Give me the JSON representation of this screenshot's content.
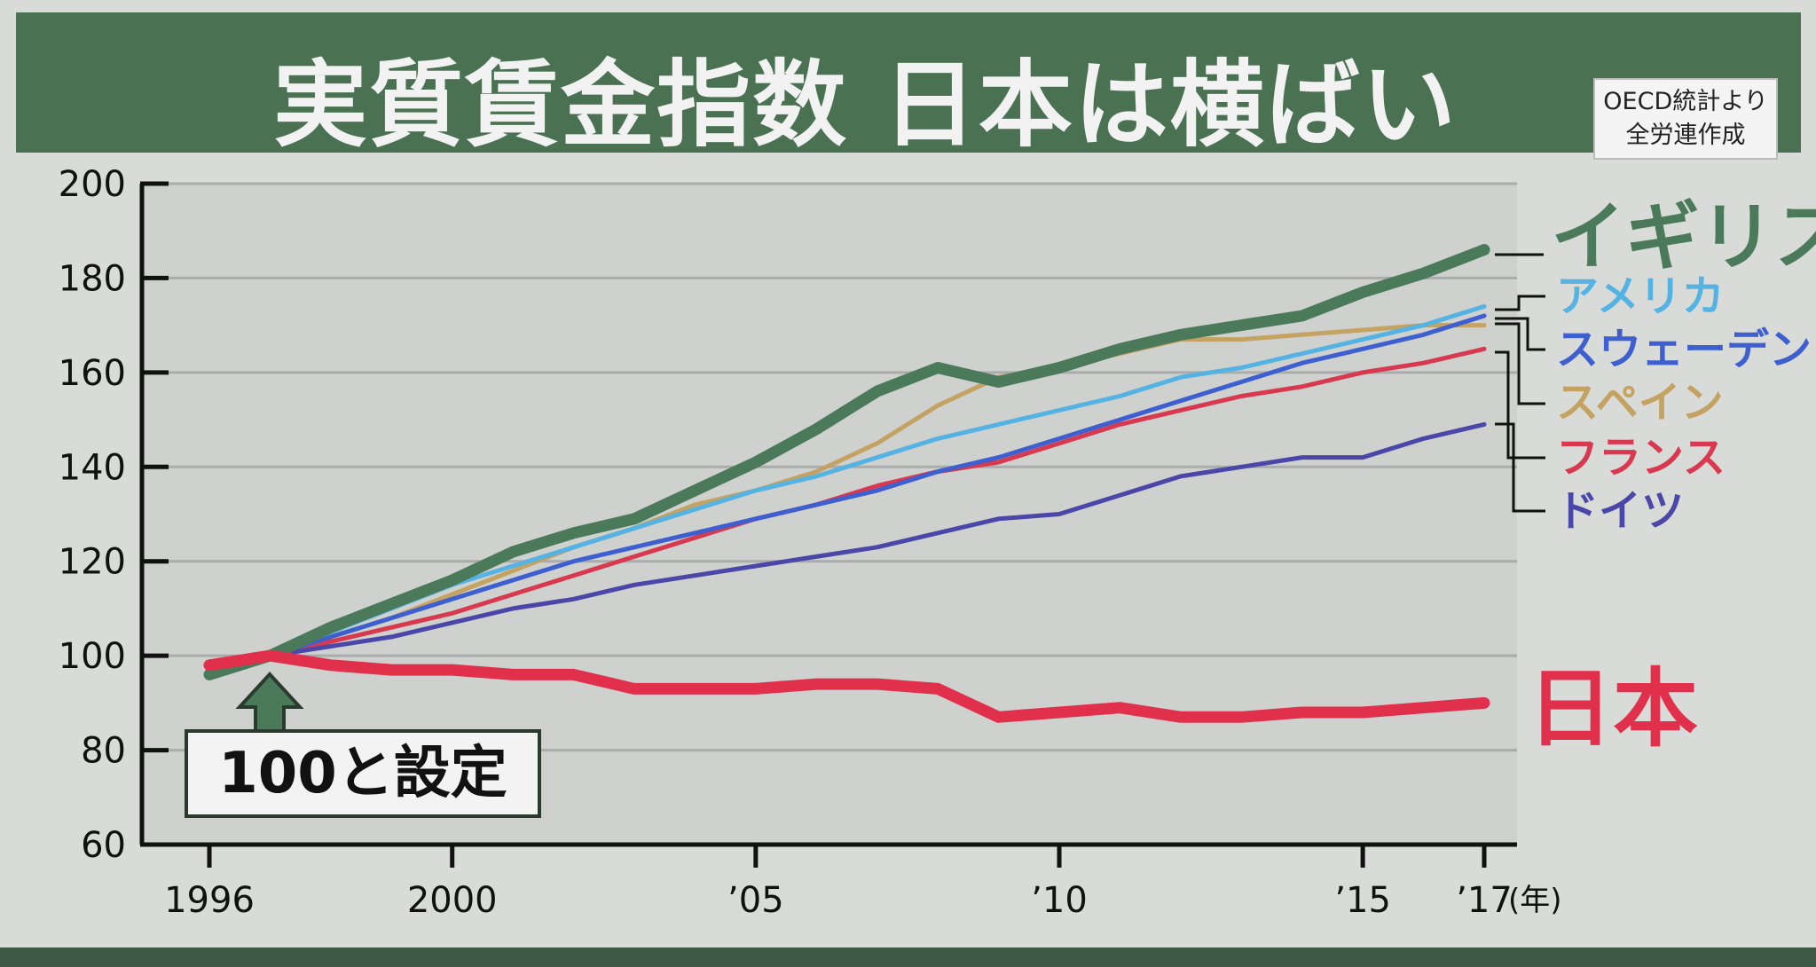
{
  "title": "実質賃金指数 日本は横ばい",
  "source": {
    "line1": "OECD統計より",
    "line2": "全労連作成"
  },
  "annotation": "100と設定",
  "chart_data": {
    "type": "line",
    "title": "実質賃金指数 日本は横ばい",
    "xlabel": "(年)",
    "ylabel": "",
    "ylim": [
      60,
      200
    ],
    "xlim": [
      1996,
      2017
    ],
    "yticks": [
      60,
      80,
      100,
      120,
      140,
      160,
      180,
      200
    ],
    "xticks": [
      {
        "value": 1996,
        "label": "1996"
      },
      {
        "value": 2000,
        "label": "2000"
      },
      {
        "value": 2005,
        "label": "’05"
      },
      {
        "value": 2010,
        "label": "’10"
      },
      {
        "value": 2015,
        "label": "’15"
      },
      {
        "value": 2017,
        "label": "’17"
      }
    ],
    "grid": true,
    "legend": "right, labels at line ends",
    "x": [
      1996,
      1997,
      1998,
      1999,
      2000,
      2001,
      2002,
      2003,
      2004,
      2005,
      2006,
      2007,
      2008,
      2009,
      2010,
      2011,
      2012,
      2013,
      2014,
      2015,
      2016,
      2017
    ],
    "series": [
      {
        "name": "スペイン",
        "color": "#c4a262",
        "width": 5,
        "values": [
          97,
          100,
          104,
          108,
          113,
          118,
          123,
          127,
          132,
          135,
          139,
          145,
          153,
          159,
          161,
          164,
          167,
          167,
          168,
          169,
          170,
          170
        ]
      },
      {
        "name": "フランス",
        "color": "#d8394e",
        "width": 5,
        "values": [
          98,
          100,
          103,
          106,
          109,
          113,
          117,
          121,
          125,
          129,
          132,
          136,
          139,
          141,
          145,
          149,
          152,
          155,
          157,
          160,
          162,
          165
        ]
      },
      {
        "name": "ドイツ",
        "color": "#4a47a8",
        "width": 5,
        "values": [
          98,
          100,
          102,
          104,
          107,
          110,
          112,
          115,
          117,
          119,
          121,
          123,
          126,
          129,
          130,
          134,
          138,
          140,
          142,
          142,
          146,
          149
        ]
      },
      {
        "name": "スウェーデン",
        "color": "#3d5fd0",
        "width": 5,
        "values": [
          98,
          100,
          104,
          108,
          112,
          116,
          120,
          123,
          126,
          129,
          132,
          135,
          139,
          142,
          146,
          150,
          154,
          158,
          162,
          165,
          168,
          172
        ]
      },
      {
        "name": "アメリカ",
        "color": "#54b3e2",
        "width": 5,
        "values": [
          98,
          100,
          105,
          110,
          115,
          119,
          123,
          127,
          131,
          135,
          138,
          142,
          146,
          149,
          152,
          155,
          159,
          161,
          164,
          167,
          170,
          174
        ]
      },
      {
        "name": "イギリス",
        "color": "#4b7a5a",
        "width": 13,
        "values": [
          96,
          100,
          106,
          111,
          116,
          122,
          126,
          129,
          135,
          141,
          148,
          156,
          161,
          158,
          161,
          165,
          168,
          170,
          172,
          177,
          181,
          186
        ]
      },
      {
        "name": "日本",
        "color": "#e0304c",
        "width": 13,
        "values": [
          98,
          100,
          98,
          97,
          97,
          96,
          96,
          93,
          93,
          93,
          94,
          94,
          93,
          87,
          88,
          89,
          87,
          87,
          88,
          88,
          89,
          90
        ]
      }
    ]
  },
  "legend_labels": [
    {
      "text": "イギリス",
      "color": "#4b7a5a"
    },
    {
      "text": "アメリカ",
      "color": "#54b3e2"
    },
    {
      "text": "スウェーデン",
      "color": "#3d5fd0"
    },
    {
      "text": "スペイン",
      "color": "#c4a262"
    },
    {
      "text": "フランス",
      "color": "#d8394e"
    },
    {
      "text": "ドイツ",
      "color": "#4a47a8"
    },
    {
      "text": "日本",
      "color": "#e0304c"
    }
  ]
}
